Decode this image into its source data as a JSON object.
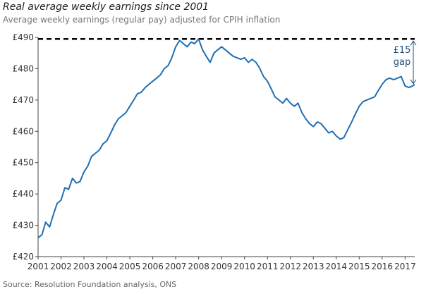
{
  "header": {
    "title": "Real average weekly earnings since 2001",
    "subtitle": "Average weekly earnings (regular pay) adjusted for CPIH inflation"
  },
  "source": "Source: Resolution Foundation analysis, ONS",
  "colors": {
    "line": "#1f6fb5",
    "annotation": "#1f4e79",
    "reference": "#000000",
    "axis": "#444444"
  },
  "chart_data": {
    "type": "line",
    "title": "Real average weekly earnings since 2001",
    "subtitle": "Average weekly earnings (regular pay) adjusted for CPIH inflation",
    "xlabel": "",
    "ylabel": "",
    "xlim": [
      2001.0,
      2017.42
    ],
    "ylim": [
      420,
      490
    ],
    "yticks": [
      420,
      430,
      440,
      450,
      460,
      470,
      480,
      490
    ],
    "ytick_labels": [
      "£420",
      "£430",
      "£440",
      "£450",
      "£460",
      "£470",
      "£480",
      "£490"
    ],
    "xticks": [
      2001,
      2002,
      2003,
      2004,
      2005,
      2006,
      2007,
      2008,
      2009,
      2010,
      2011,
      2012,
      2013,
      2014,
      2015,
      2016,
      2017
    ],
    "xtick_labels": [
      "2001",
      "2002",
      "2003",
      "2004",
      "2005",
      "2006",
      "2007",
      "2008",
      "2009",
      "2010",
      "2011",
      "2012",
      "2013",
      "2014",
      "2015",
      "2016",
      "2017"
    ],
    "grid": false,
    "legend": "none",
    "series": [
      {
        "x": [
          2001.0,
          2001.17,
          2001.33,
          2001.5,
          2001.67,
          2001.83,
          2002.0,
          2002.17,
          2002.33,
          2002.5,
          2002.67,
          2002.83,
          2003.0,
          2003.17,
          2003.33,
          2003.5,
          2003.67,
          2003.83,
          2004.0,
          2004.17,
          2004.33,
          2004.5,
          2004.67,
          2004.83,
          2005.0,
          2005.17,
          2005.33,
          2005.5,
          2005.67,
          2005.83,
          2006.0,
          2006.17,
          2006.33,
          2006.5,
          2006.67,
          2006.83,
          2007.0,
          2007.17,
          2007.33,
          2007.5,
          2007.67,
          2007.83,
          2008.0,
          2008.17,
          2008.33,
          2008.5,
          2008.67,
          2008.83,
          2009.0,
          2009.17,
          2009.33,
          2009.5,
          2009.67,
          2009.83,
          2010.0,
          2010.17,
          2010.33,
          2010.5,
          2010.67,
          2010.83,
          2011.0,
          2011.17,
          2011.33,
          2011.5,
          2011.67,
          2011.83,
          2012.0,
          2012.17,
          2012.33,
          2012.5,
          2012.67,
          2012.83,
          2013.0,
          2013.17,
          2013.33,
          2013.5,
          2013.67,
          2013.83,
          2014.0,
          2014.17,
          2014.33,
          2014.5,
          2014.67,
          2014.83,
          2015.0,
          2015.17,
          2015.33,
          2015.5,
          2015.67,
          2015.83,
          2016.0,
          2016.17,
          2016.33,
          2016.5,
          2016.67,
          2016.83,
          2017.0,
          2017.17,
          2017.33,
          2017.42
        ],
        "values": [
          426.0,
          427.0,
          431.0,
          429.5,
          433.5,
          437.0,
          438.0,
          442.0,
          441.5,
          445.0,
          443.5,
          444.0,
          447.0,
          449.0,
          452.0,
          453.0,
          454.0,
          456.0,
          457.0,
          459.5,
          462.0,
          464.0,
          465.0,
          466.0,
          468.0,
          470.0,
          472.0,
          472.5,
          474.0,
          475.0,
          476.0,
          477.0,
          478.0,
          480.0,
          481.0,
          483.5,
          487.0,
          489.0,
          488.0,
          487.0,
          488.5,
          488.0,
          489.5,
          486.0,
          484.0,
          482.0,
          485.0,
          486.0,
          487.0,
          486.0,
          485.0,
          484.0,
          483.5,
          483.0,
          483.5,
          482.0,
          483.0,
          482.0,
          480.0,
          477.5,
          476.0,
          473.5,
          471.0,
          470.0,
          469.0,
          470.5,
          469.0,
          468.0,
          469.0,
          466.0,
          464.0,
          462.5,
          461.5,
          463.0,
          462.5,
          461.0,
          459.5,
          460.0,
          458.5,
          457.5,
          458.0,
          460.5,
          463.0,
          465.5,
          468.0,
          469.5,
          470.0,
          470.5,
          471.0,
          473.0,
          475.0,
          476.5,
          477.0,
          476.5,
          477.0,
          477.5,
          474.5,
          474.0,
          474.5,
          475.0
        ]
      }
    ],
    "reference_line": {
      "y": 489.5,
      "style": "dashed"
    },
    "annotations": [
      {
        "text_line1": "£15",
        "text_line2": "gap",
        "from_y": 489.5,
        "to_y": 474.5
      }
    ]
  }
}
